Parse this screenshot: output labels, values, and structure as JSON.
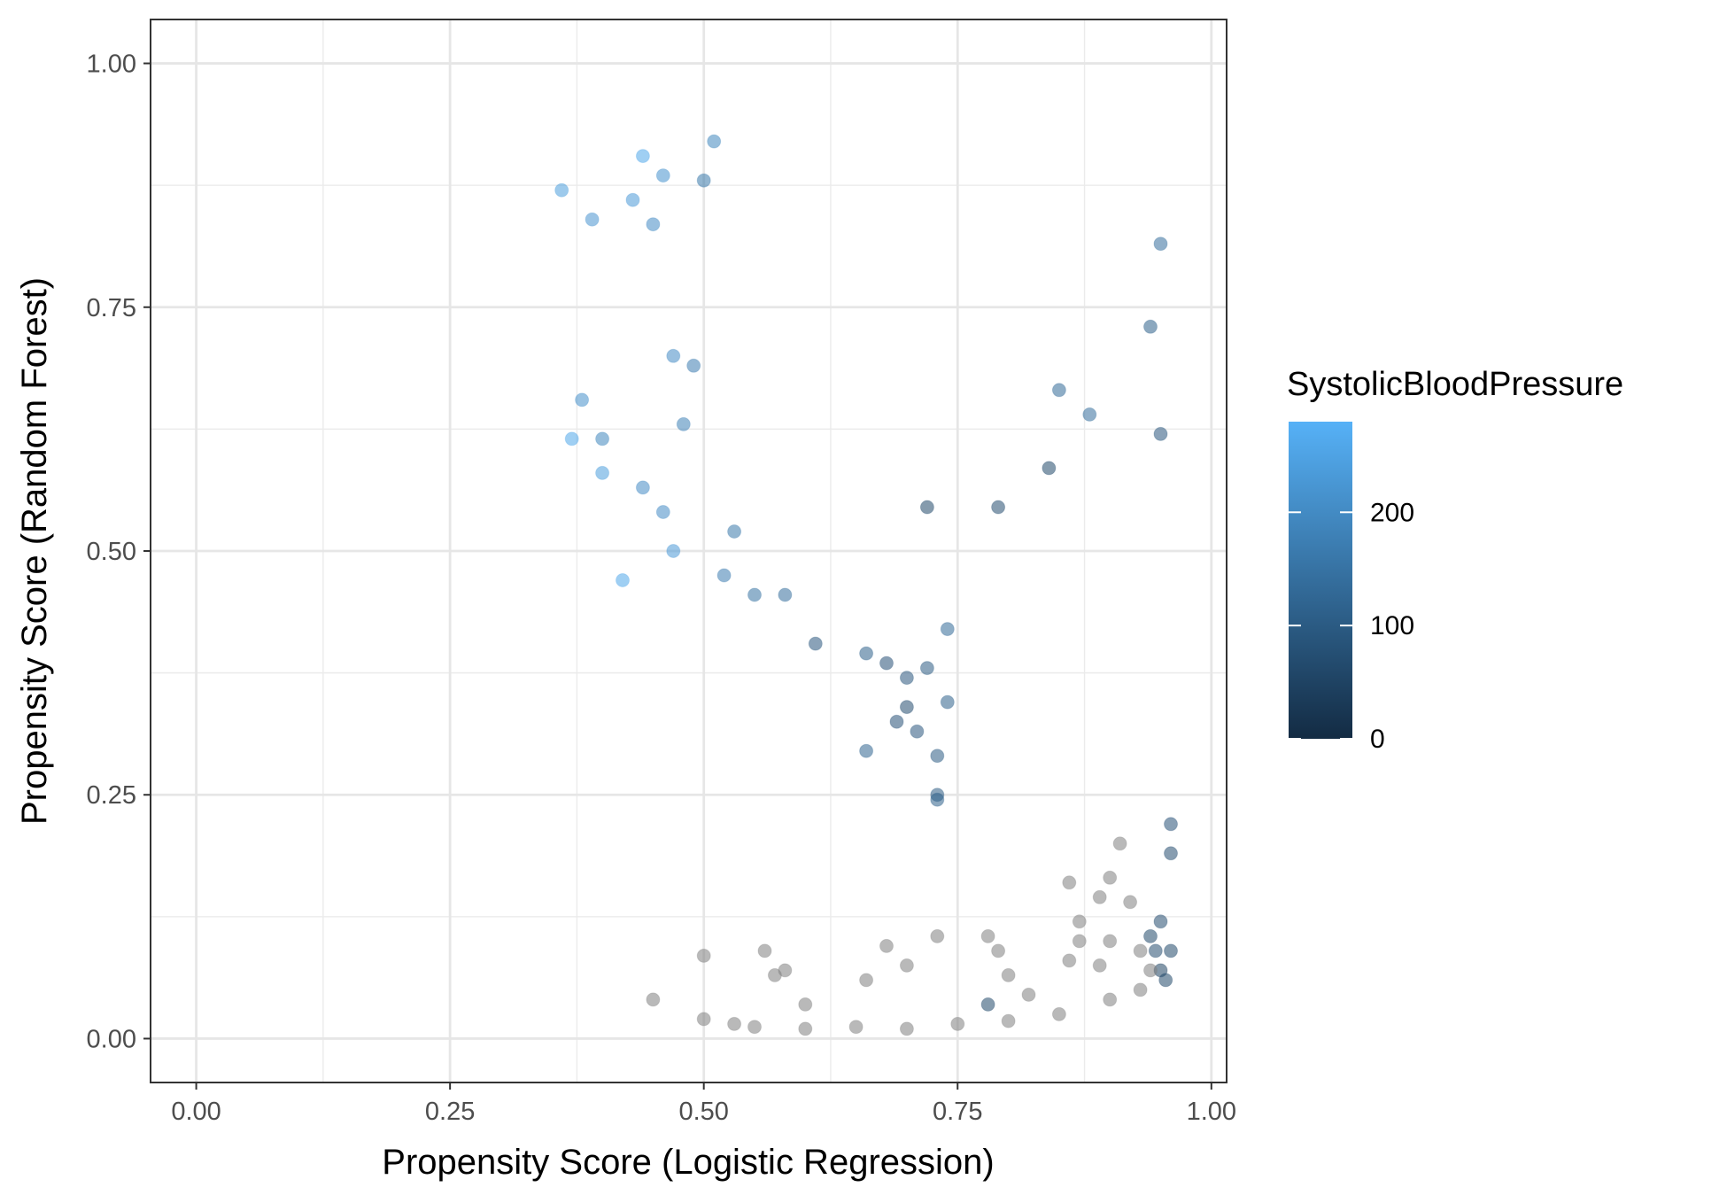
{
  "chart_data": {
    "type": "scatter",
    "title": "",
    "xlabel": "Propensity Score (Logistic Regression)",
    "ylabel": "Propensity Score (Random Forest)",
    "xlim": [
      -0.045,
      1.015
    ],
    "ylim": [
      -0.045,
      1.045
    ],
    "x_ticks": [
      "0.00",
      "0.25",
      "0.50",
      "0.75",
      "1.00"
    ],
    "y_ticks": [
      "0.00",
      "0.25",
      "0.50",
      "0.75",
      "1.00"
    ],
    "grid": true,
    "point_alpha": 0.55,
    "na_color": "#7f7f7f",
    "legend": {
      "title": "SystolicBloodPressure",
      "position": "right",
      "type": "colorbar",
      "range": [
        0,
        280
      ],
      "breaks": [
        "0",
        "100",
        "200"
      ],
      "low_color": "#132B43",
      "high_color": "#56B1F7"
    },
    "series": [
      {
        "color_by": "SystolicBloodPressure",
        "points": [
          [
            0.36,
            0.87,
            240
          ],
          [
            0.39,
            0.84,
            220
          ],
          [
            0.38,
            0.655,
            210
          ],
          [
            0.37,
            0.615,
            260
          ],
          [
            0.4,
            0.615,
            190
          ],
          [
            0.4,
            0.58,
            240
          ],
          [
            0.42,
            0.47,
            260
          ],
          [
            0.43,
            0.86,
            230
          ],
          [
            0.44,
            0.905,
            260
          ],
          [
            0.44,
            0.565,
            200
          ],
          [
            0.45,
            0.835,
            200
          ],
          [
            0.46,
            0.885,
            215
          ],
          [
            0.47,
            0.7,
            200
          ],
          [
            0.47,
            0.5,
            230
          ],
          [
            0.46,
            0.54,
            200
          ],
          [
            0.48,
            0.63,
            180
          ],
          [
            0.49,
            0.69,
            170
          ],
          [
            0.5,
            0.88,
            160
          ],
          [
            0.51,
            0.92,
            190
          ],
          [
            0.52,
            0.475,
            170
          ],
          [
            0.53,
            0.52,
            160
          ],
          [
            0.55,
            0.455,
            150
          ],
          [
            0.58,
            0.455,
            140
          ],
          [
            0.61,
            0.405,
            90
          ],
          [
            0.66,
            0.395,
            110
          ],
          [
            0.68,
            0.385,
            80
          ],
          [
            0.7,
            0.37,
            90
          ],
          [
            0.72,
            0.38,
            100
          ],
          [
            0.7,
            0.34,
            70
          ],
          [
            0.69,
            0.325,
            80
          ],
          [
            0.71,
            0.315,
            90
          ],
          [
            0.73,
            0.29,
            100
          ],
          [
            0.74,
            0.345,
            110
          ],
          [
            0.74,
            0.42,
            130
          ],
          [
            0.66,
            0.295,
            120
          ],
          [
            0.73,
            0.25,
            100
          ],
          [
            0.73,
            0.245,
            110
          ],
          [
            0.84,
            0.585,
            60
          ],
          [
            0.85,
            0.665,
            130
          ],
          [
            0.88,
            0.64,
            140
          ],
          [
            0.95,
            0.62,
            90
          ],
          [
            0.95,
            0.815,
            140
          ],
          [
            0.94,
            0.73,
            110
          ],
          [
            0.72,
            0.545,
            60
          ],
          [
            0.79,
            0.545,
            70
          ],
          [
            0.78,
            0.035,
            60
          ],
          [
            0.94,
            0.105,
            60
          ],
          [
            0.95,
            0.12,
            70
          ],
          [
            0.96,
            0.22,
            80
          ],
          [
            0.96,
            0.19,
            70
          ],
          [
            0.96,
            0.09,
            60
          ],
          [
            0.95,
            0.07,
            50
          ],
          [
            0.955,
            0.06,
            60
          ],
          [
            0.945,
            0.09,
            70
          ]
        ]
      },
      {
        "name": "NA",
        "points": [
          [
            0.45,
            0.04
          ],
          [
            0.5,
            0.085
          ],
          [
            0.56,
            0.09
          ],
          [
            0.57,
            0.065
          ],
          [
            0.58,
            0.07
          ],
          [
            0.6,
            0.035
          ],
          [
            0.66,
            0.06
          ],
          [
            0.68,
            0.095
          ],
          [
            0.7,
            0.075
          ],
          [
            0.73,
            0.105
          ],
          [
            0.78,
            0.105
          ],
          [
            0.79,
            0.09
          ],
          [
            0.8,
            0.065
          ],
          [
            0.82,
            0.045
          ],
          [
            0.86,
            0.16
          ],
          [
            0.87,
            0.12
          ],
          [
            0.89,
            0.145
          ],
          [
            0.91,
            0.2
          ],
          [
            0.9,
            0.165
          ],
          [
            0.92,
            0.14
          ],
          [
            0.93,
            0.09
          ],
          [
            0.94,
            0.07
          ],
          [
            0.87,
            0.1
          ],
          [
            0.86,
            0.08
          ],
          [
            0.89,
            0.075
          ],
          [
            0.9,
            0.1
          ],
          [
            0.5,
            0.02
          ],
          [
            0.53,
            0.015
          ],
          [
            0.55,
            0.012
          ],
          [
            0.6,
            0.01
          ],
          [
            0.65,
            0.012
          ],
          [
            0.7,
            0.01
          ],
          [
            0.75,
            0.015
          ],
          [
            0.8,
            0.018
          ],
          [
            0.85,
            0.025
          ],
          [
            0.9,
            0.04
          ],
          [
            0.93,
            0.05
          ]
        ]
      }
    ]
  }
}
